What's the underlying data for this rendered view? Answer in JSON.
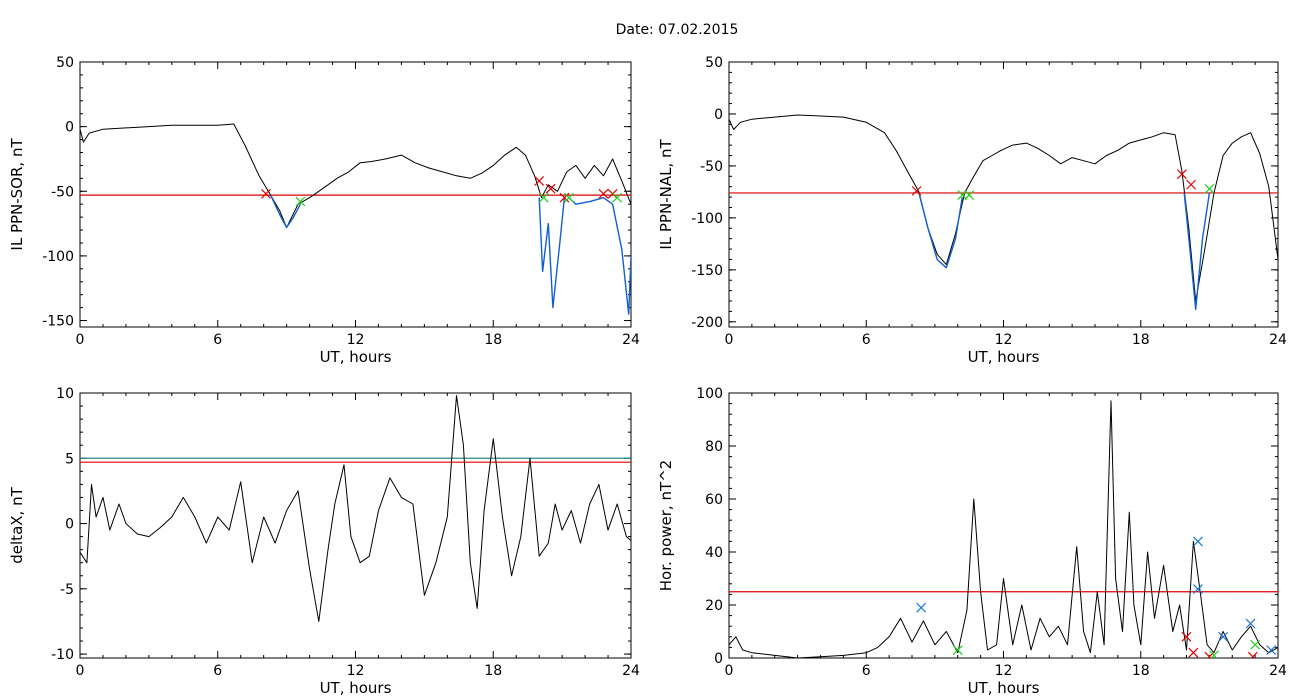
{
  "title": "Date:  07.02.2015",
  "chart_data": [
    {
      "type": "line",
      "xlabel": "UT, hours",
      "ylabel": "IL PPN-SOR, nT",
      "xlim": [
        0,
        24
      ],
      "ylim": [
        -155,
        50
      ],
      "xticks": [
        0,
        6,
        12,
        18,
        24
      ],
      "yticks": [
        50,
        0,
        -50,
        -100,
        -150
      ],
      "threshold": {
        "value": -53,
        "color": "#e00000"
      },
      "series": [
        {
          "color": "#000000",
          "x": [
            0,
            0.15,
            0.4,
            1,
            2,
            3,
            4,
            5,
            6,
            6.7,
            7.2,
            7.8,
            8.3,
            8.7,
            9.0,
            9.5,
            10.0,
            10.4,
            10.8,
            11.2,
            11.7,
            12.2,
            12.7,
            13.3,
            14.0,
            14.6,
            15.2,
            15.8,
            16.4,
            17.0,
            17.5,
            18.0,
            18.5,
            19.0,
            19.4,
            19.8,
            20.1,
            20.4,
            20.8,
            21.2,
            21.6,
            22.0,
            22.4,
            22.8,
            23.2,
            23.6,
            24
          ],
          "y": [
            -2,
            -12,
            -5,
            -2,
            -1,
            0,
            1,
            1,
            1,
            2,
            -15,
            -38,
            -53,
            -65,
            -78,
            -60,
            -55,
            -50,
            -45,
            -40,
            -35,
            -28,
            -27,
            -25,
            -22,
            -28,
            -32,
            -35,
            -38,
            -40,
            -36,
            -30,
            -22,
            -16,
            -22,
            -38,
            -55,
            -45,
            -50,
            -35,
            -30,
            -40,
            -30,
            -38,
            -25,
            -42,
            -60
          ]
        },
        {
          "color": "#1060d0",
          "x": [
            8.3,
            8.7,
            9.0,
            9.3,
            9.6
          ],
          "y": [
            -53,
            -68,
            -78,
            -70,
            -60
          ]
        },
        {
          "color": "#1060d0",
          "x": [
            20.0,
            20.15,
            20.4,
            20.6,
            20.9,
            21.1
          ],
          "y": [
            -55,
            -112,
            -75,
            -140,
            -90,
            -55
          ]
        },
        {
          "color": "#1060d0",
          "x": [
            21.3,
            21.6,
            22.2,
            22.8,
            23.2,
            23.6,
            23.9,
            24
          ],
          "y": [
            -55,
            -60,
            -58,
            -55,
            -60,
            -95,
            -145,
            -100
          ]
        }
      ],
      "markers": [
        {
          "color": "#e00000",
          "x": [
            8.1,
            20.0,
            20.5,
            21.1,
            22.8,
            23.2
          ],
          "y": [
            -52,
            -42,
            -48,
            -55,
            -52,
            -52
          ]
        },
        {
          "color": "#20d020",
          "x": [
            9.6,
            20.2,
            21.3,
            23.4
          ],
          "y": [
            -58,
            -55,
            -55,
            -55
          ]
        }
      ]
    },
    {
      "type": "line",
      "xlabel": "UT, hours",
      "ylabel": "IL PPN-NAL, nT",
      "xlim": [
        0,
        24
      ],
      "ylim": [
        -205,
        50
      ],
      "xticks": [
        0,
        6,
        12,
        18,
        24
      ],
      "yticks": [
        50,
        0,
        -50,
        -100,
        -150,
        -200
      ],
      "threshold": {
        "value": -76,
        "color": "#e00000"
      },
      "series": [
        {
          "color": "#000000",
          "x": [
            0,
            0.2,
            0.5,
            1,
            2,
            3,
            4,
            5,
            6,
            6.8,
            7.3,
            7.8,
            8.3,
            8.7,
            9.1,
            9.5,
            9.9,
            10.3,
            10.7,
            11.1,
            11.5,
            11.9,
            12.4,
            13.0,
            13.5,
            14.0,
            14.5,
            15.0,
            15.5,
            16.0,
            16.5,
            17.0,
            17.5,
            18.0,
            18.5,
            19.0,
            19.5,
            19.8,
            20.1,
            20.4,
            20.8,
            21.2,
            21.6,
            22.0,
            22.4,
            22.8,
            23.2,
            23.6,
            24
          ],
          "y": [
            -5,
            -15,
            -8,
            -5,
            -3,
            -1,
            -2,
            -3,
            -8,
            -18,
            -35,
            -55,
            -75,
            -110,
            -135,
            -145,
            -115,
            -76,
            -60,
            -45,
            -40,
            -35,
            -30,
            -28,
            -33,
            -40,
            -48,
            -42,
            -45,
            -48,
            -40,
            -35,
            -28,
            -25,
            -22,
            -18,
            -20,
            -55,
            -110,
            -180,
            -130,
            -76,
            -40,
            -28,
            -22,
            -18,
            -38,
            -70,
            -140
          ]
        },
        {
          "color": "#1060d0",
          "x": [
            8.3,
            8.7,
            9.1,
            9.5,
            9.9,
            10.2
          ],
          "y": [
            -76,
            -110,
            -140,
            -148,
            -120,
            -80
          ]
        },
        {
          "color": "#1060d0",
          "x": [
            19.9,
            20.15,
            20.4,
            20.7,
            21.0
          ],
          "y": [
            -76,
            -130,
            -188,
            -120,
            -76
          ]
        }
      ],
      "markers": [
        {
          "color": "#e00000",
          "x": [
            8.2,
            19.8,
            20.2
          ],
          "y": [
            -74,
            -58,
            -68
          ]
        },
        {
          "color": "#20d020",
          "x": [
            10.2,
            10.5,
            21.0
          ],
          "y": [
            -78,
            -78,
            -72
          ]
        }
      ]
    },
    {
      "type": "line",
      "xlabel": "UT, hours",
      "ylabel": "deltaX, nT",
      "xlim": [
        0,
        24
      ],
      "ylim": [
        -10.3,
        10
      ],
      "xticks": [
        0,
        6,
        12,
        18,
        24
      ],
      "yticks": [
        10,
        5,
        0,
        -5,
        -10
      ],
      "thresholds": [
        {
          "value": 5.0,
          "color": "#2a8a8a"
        },
        {
          "value": 4.7,
          "color": "#e00000"
        }
      ],
      "series": [
        {
          "color": "#000000",
          "x": [
            0,
            0.3,
            0.5,
            0.7,
            1.0,
            1.3,
            1.7,
            2.0,
            2.5,
            3.0,
            3.5,
            4.0,
            4.5,
            5.0,
            5.5,
            6.0,
            6.5,
            7.0,
            7.5,
            8.0,
            8.5,
            9.0,
            9.5,
            10.0,
            10.4,
            10.8,
            11.1,
            11.5,
            11.8,
            12.2,
            12.6,
            13.0,
            13.5,
            14.0,
            14.5,
            15.0,
            15.5,
            16.0,
            16.4,
            16.7,
            17.0,
            17.3,
            17.6,
            18.0,
            18.4,
            18.8,
            19.2,
            19.6,
            20.0,
            20.4,
            20.7,
            21.0,
            21.4,
            21.8,
            22.2,
            22.6,
            23.0,
            23.4,
            23.8,
            24
          ],
          "y": [
            -2.2,
            -3.0,
            3.0,
            0.5,
            2.0,
            -0.5,
            1.5,
            0,
            -0.8,
            -1.0,
            -0.3,
            0.5,
            2.0,
            0.5,
            -1.5,
            0.5,
            -0.5,
            3.2,
            -3.0,
            0.5,
            -1.5,
            1.0,
            2.5,
            -3.5,
            -7.5,
            -2.0,
            1.5,
            4.5,
            -1.0,
            -3.0,
            -2.5,
            1.0,
            3.5,
            2.0,
            1.5,
            -5.5,
            -3.0,
            0.5,
            9.8,
            6.0,
            -3.0,
            -6.5,
            1.0,
            6.5,
            0.5,
            -4.0,
            -1.0,
            5.0,
            -2.5,
            -1.5,
            1.5,
            -0.5,
            1.0,
            -1.5,
            1.5,
            3.0,
            -0.5,
            1.5,
            -1.0,
            -1.3
          ]
        }
      ]
    },
    {
      "type": "line",
      "xlabel": "UT, hours",
      "ylabel": "Hor. power, nT^2",
      "xlim": [
        0,
        24
      ],
      "ylim": [
        0,
        100
      ],
      "xticks": [
        0,
        6,
        12,
        18,
        24
      ],
      "yticks": [
        100,
        80,
        60,
        40,
        20,
        0
      ],
      "threshold": {
        "value": 25,
        "color": "#e00000"
      },
      "series": [
        {
          "color": "#000000",
          "x": [
            0,
            0.3,
            0.6,
            1.0,
            2.0,
            3.0,
            4.0,
            5.0,
            6.0,
            6.5,
            7.0,
            7.5,
            8.0,
            8.5,
            9.0,
            9.5,
            10.0,
            10.4,
            10.7,
            11.0,
            11.3,
            11.7,
            12.0,
            12.4,
            12.8,
            13.2,
            13.6,
            14.0,
            14.4,
            14.8,
            15.2,
            15.5,
            15.8,
            16.1,
            16.4,
            16.7,
            16.9,
            17.2,
            17.5,
            17.7,
            18.0,
            18.3,
            18.6,
            19.0,
            19.4,
            19.7,
            20.0,
            20.3,
            20.6,
            20.9,
            21.2,
            21.6,
            22.0,
            22.4,
            22.8,
            23.2,
            23.6,
            24
          ],
          "y": [
            5,
            8,
            3,
            2,
            1,
            0,
            0.5,
            1,
            2,
            4,
            8,
            15,
            6,
            14,
            5,
            10,
            2,
            18,
            60,
            25,
            3,
            5,
            30,
            5,
            20,
            3,
            15,
            8,
            12,
            5,
            42,
            10,
            2,
            25,
            5,
            97,
            30,
            10,
            55,
            20,
            5,
            40,
            15,
            35,
            10,
            20,
            3,
            44,
            25,
            5,
            2,
            10,
            3,
            8,
            12,
            5,
            2,
            4
          ]
        }
      ],
      "markers": [
        {
          "color": "#1e78d8",
          "x": [
            8.4,
            20.5,
            20.5,
            21.6,
            22.8,
            23.7
          ],
          "y": [
            19,
            44,
            26,
            8,
            13,
            3
          ]
        },
        {
          "color": "#e00000",
          "x": [
            20.0,
            20.3,
            21.0,
            22.9
          ],
          "y": [
            8,
            2,
            0.5,
            0.5
          ]
        },
        {
          "color": "#20d020",
          "x": [
            10.0,
            21.2,
            23.0
          ],
          "y": [
            3,
            1,
            5
          ]
        }
      ]
    }
  ]
}
